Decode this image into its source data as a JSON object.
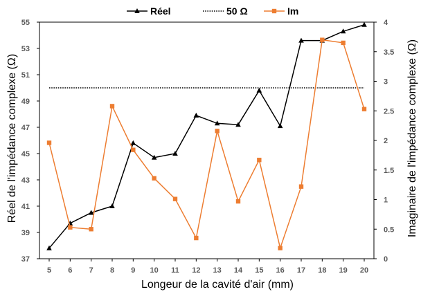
{
  "chart_data": {
    "type": "line",
    "xlabel": "Longeur de la cavité d'air (mm)",
    "ylabel": "Réel de l'impédance complexe (Ω)",
    "y2label": "Imaginaire de l'impédance complexe (Ω)",
    "x": [
      5,
      6,
      7,
      8,
      9,
      10,
      11,
      12,
      13,
      14,
      15,
      16,
      17,
      18,
      19,
      20
    ],
    "xlim": [
      5,
      20
    ],
    "ylim": [
      37,
      55
    ],
    "y2lim": [
      0,
      4
    ],
    "y_ticks": [
      37,
      39,
      41,
      43,
      45,
      47,
      49,
      51,
      53,
      55
    ],
    "y2_ticks": [
      "0",
      "0.5",
      "1",
      "1.5",
      "2",
      "2.5",
      "3",
      "3.5",
      "4"
    ],
    "legend_position": "top-center",
    "grid": false,
    "series": [
      {
        "name": "Réel",
        "axis": "left",
        "color": "#000000",
        "marker": "triangle",
        "values": [
          37.8,
          39.7,
          40.5,
          41.0,
          45.8,
          44.7,
          45.0,
          47.9,
          47.3,
          47.2,
          49.8,
          47.1,
          53.6,
          53.6,
          54.3,
          54.8
        ]
      },
      {
        "name": "50 Ω",
        "axis": "left",
        "color": "#000000",
        "style": "dotted",
        "values": [
          50,
          50,
          50,
          50,
          50,
          50,
          50,
          50,
          50,
          50,
          50,
          50,
          50,
          50,
          50,
          50
        ]
      },
      {
        "name": "Im",
        "axis": "right",
        "color": "#ED7D31",
        "marker": "square",
        "values": [
          1.96,
          0.53,
          0.5,
          2.58,
          1.84,
          1.36,
          1.01,
          0.35,
          2.16,
          0.97,
          1.67,
          0.18,
          1.22,
          3.7,
          3.65,
          2.53
        ]
      }
    ]
  }
}
